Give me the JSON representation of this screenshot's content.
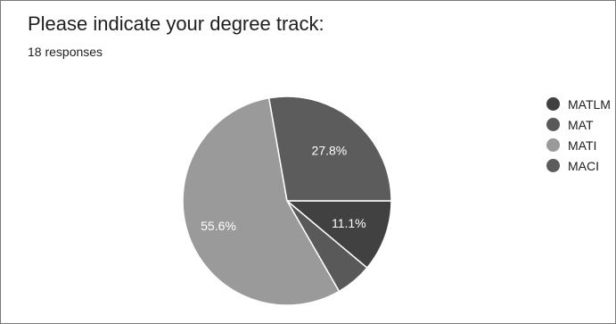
{
  "header": {
    "title": "Please indicate your degree track:",
    "responses": "18 responses"
  },
  "chart_data": {
    "type": "pie",
    "title": "Please indicate your degree track:",
    "subtitle": "18 responses",
    "legend_position": "right",
    "slices": [
      {
        "label": "MATLM",
        "value": 11.1,
        "display": "11.1%",
        "color": "#414141",
        "show_label": true
      },
      {
        "label": "MAT",
        "value": 5.6,
        "display": "",
        "color": "#595959",
        "show_label": false
      },
      {
        "label": "MATI",
        "value": 55.6,
        "display": "55.6%",
        "color": "#9a9a9a",
        "show_label": true
      },
      {
        "label": "MACI",
        "value": 27.8,
        "display": "27.8%",
        "color": "#5c5c5c",
        "show_label": true
      }
    ],
    "start_angle_deg": 0,
    "direction": "clockwise"
  }
}
